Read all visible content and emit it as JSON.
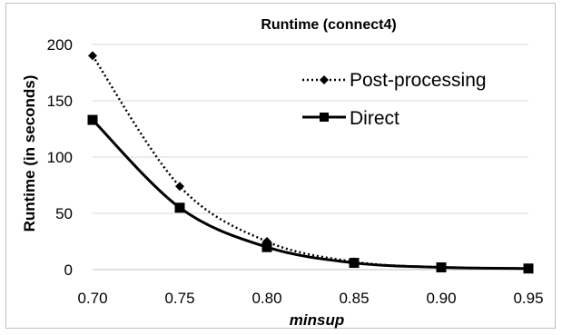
{
  "chart_data": {
    "type": "line",
    "title": "Runtime (connect4)",
    "xlabel": "minsup",
    "ylabel": "Runtime (in seconds)",
    "x": [
      "0.70",
      "0.75",
      "0.80",
      "0.85",
      "0.90",
      "0.95"
    ],
    "yticks": [
      "0",
      "50",
      "100",
      "150",
      "200"
    ],
    "ylim": [
      0,
      200
    ],
    "grid": true,
    "legend_position": "top-right",
    "series": [
      {
        "name": "Post-processing",
        "values": [
          190,
          74,
          25,
          7,
          2,
          1
        ],
        "line_style": "dotted",
        "marker": "diamond",
        "color": "#000000"
      },
      {
        "name": "Direct",
        "values": [
          133,
          55,
          20,
          6,
          2,
          1
        ],
        "line_style": "solid",
        "marker": "square",
        "color": "#000000"
      }
    ]
  }
}
